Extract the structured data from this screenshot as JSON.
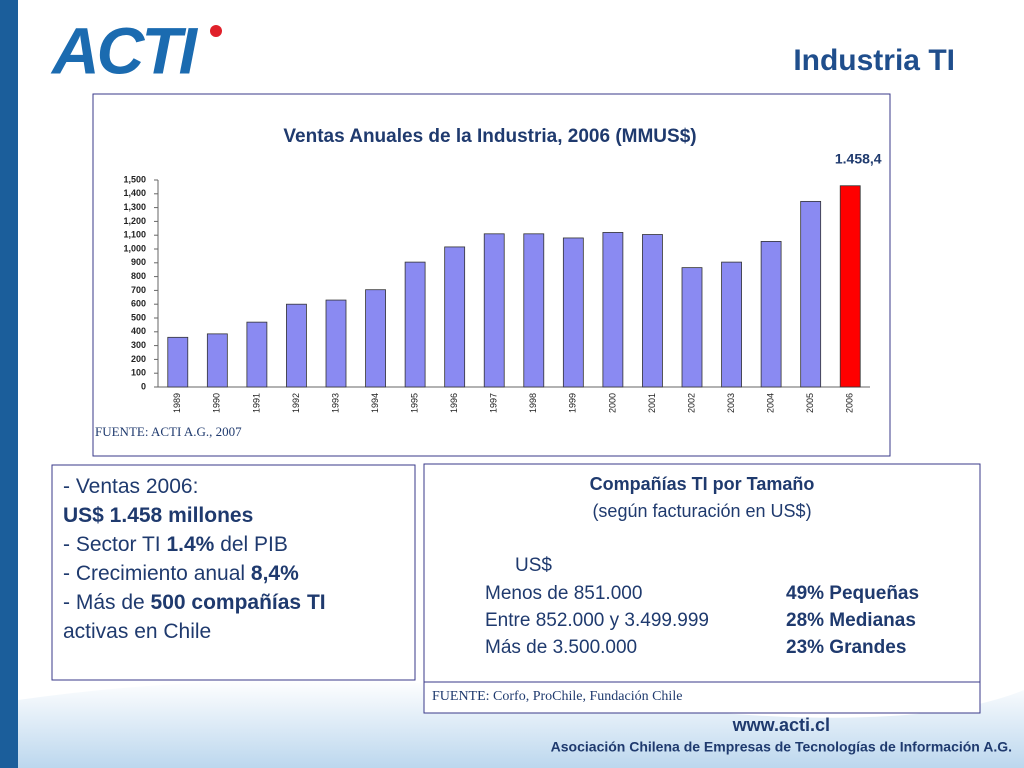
{
  "header": {
    "logo": "ACTI",
    "title": "Industria TI"
  },
  "chart_data": {
    "type": "bar",
    "title": "Ventas Anuales de la Industria, 2006 (MMUS$)",
    "categories": [
      "1989",
      "1990",
      "1991",
      "1992",
      "1993",
      "1994",
      "1995",
      "1996",
      "1997",
      "1998",
      "1999",
      "2000",
      "2001",
      "2002",
      "2003",
      "2004",
      "2005",
      "2006"
    ],
    "values": [
      360,
      385,
      470,
      600,
      630,
      705,
      905,
      1015,
      1110,
      1110,
      1080,
      1120,
      1105,
      865,
      905,
      1055,
      1345,
      1458.4
    ],
    "value_labels": [
      null,
      null,
      null,
      null,
      null,
      null,
      null,
      null,
      null,
      null,
      null,
      null,
      null,
      null,
      null,
      null,
      null,
      "1.458,4"
    ],
    "colors": [
      "#8a8af2",
      "#8a8af2",
      "#8a8af2",
      "#8a8af2",
      "#8a8af2",
      "#8a8af2",
      "#8a8af2",
      "#8a8af2",
      "#8a8af2",
      "#8a8af2",
      "#8a8af2",
      "#8a8af2",
      "#8a8af2",
      "#8a8af2",
      "#8a8af2",
      "#8a8af2",
      "#8a8af2",
      "#ff0000"
    ],
    "ylim": [
      0,
      1500
    ],
    "yticks": [
      0,
      100,
      200,
      300,
      400,
      500,
      600,
      700,
      800,
      900,
      {
        "value": 1000,
        "label": "1,000"
      },
      {
        "value": 1100,
        "label": "1,100"
      },
      {
        "value": 1200,
        "label": "1,200"
      },
      {
        "value": 1300,
        "label": "1,300"
      },
      {
        "value": 1400,
        "label": "1,400"
      },
      {
        "value": 1500,
        "label": "1,500"
      }
    ],
    "source": "FUENTE: ACTI A.G., 2007"
  },
  "left_box": {
    "lines": [
      [
        {
          "text": "- Ventas 2006:",
          "bold": false
        }
      ],
      [
        {
          "text": "US$ 1.458 millones",
          "bold": true
        }
      ],
      [
        {
          "text": "- Sector TI ",
          "bold": false
        },
        {
          "text": "1.4%",
          "bold": true
        },
        {
          "text": " del PIB",
          "bold": false
        }
      ],
      [
        {
          "text": "- Crecimiento anual ",
          "bold": false
        },
        {
          "text": "8,4%",
          "bold": true
        }
      ],
      [
        {
          "text": "- Más de ",
          "bold": false
        },
        {
          "text": "500 compañías TI",
          "bold": true
        }
      ],
      [
        {
          "text": "activas en Chile",
          "bold": false
        }
      ]
    ]
  },
  "right_box": {
    "title": "Compañías TI por Tamaño",
    "subtitle": "(según facturación en US$)",
    "unit": "US$",
    "rows": [
      [
        "Menos de 851.000",
        "49% Pequeñas"
      ],
      [
        "Entre 852.000 y 3.499.999",
        "28% Medianas"
      ],
      [
        "Más de 3.500.000",
        "23% Grandes"
      ]
    ],
    "source": "FUENTE: Corfo, ProChile, Fundación Chile"
  },
  "footer": {
    "url": "www.acti.cl",
    "organization": "Asociación Chilena de Empresas de Tecnologías de Información A.G."
  }
}
